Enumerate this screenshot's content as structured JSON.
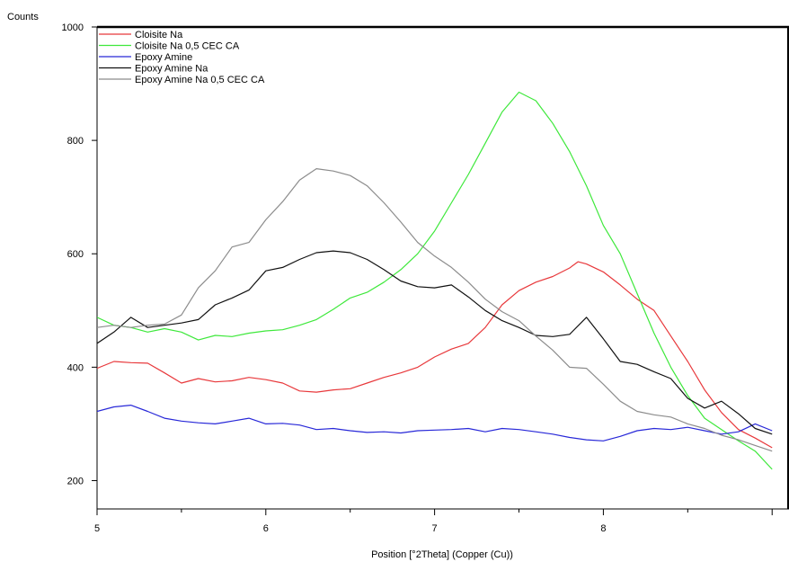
{
  "chart_data": {
    "type": "line",
    "xlabel": "Position [°2Theta] (Copper (Cu))",
    "ylabel": "Counts",
    "xlim": [
      5,
      9.1
    ],
    "ylim": [
      150,
      1000
    ],
    "x_ticks": [
      5,
      6,
      7,
      8
    ],
    "y_ticks": [
      200,
      400,
      600,
      800,
      1000
    ],
    "grid": false,
    "legend_position": "top-left",
    "series": [
      {
        "name": "Cloisite Na",
        "color": "#e8383b",
        "points": [
          [
            5.0,
            398
          ],
          [
            5.1,
            410
          ],
          [
            5.2,
            408
          ],
          [
            5.3,
            407
          ],
          [
            5.4,
            390
          ],
          [
            5.5,
            372
          ],
          [
            5.6,
            380
          ],
          [
            5.7,
            374
          ],
          [
            5.8,
            376
          ],
          [
            5.9,
            382
          ],
          [
            6.0,
            378
          ],
          [
            6.1,
            372
          ],
          [
            6.2,
            358
          ],
          [
            6.3,
            356
          ],
          [
            6.4,
            360
          ],
          [
            6.5,
            362
          ],
          [
            6.6,
            372
          ],
          [
            6.7,
            382
          ],
          [
            6.8,
            390
          ],
          [
            6.9,
            400
          ],
          [
            7.0,
            418
          ],
          [
            7.1,
            432
          ],
          [
            7.2,
            442
          ],
          [
            7.3,
            470
          ],
          [
            7.4,
            510
          ],
          [
            7.5,
            535
          ],
          [
            7.6,
            550
          ],
          [
            7.7,
            560
          ],
          [
            7.8,
            575
          ],
          [
            7.85,
            586
          ],
          [
            7.9,
            582
          ],
          [
            8.0,
            568
          ],
          [
            8.1,
            545
          ],
          [
            8.2,
            520
          ],
          [
            8.3,
            500
          ],
          [
            8.4,
            455
          ],
          [
            8.5,
            410
          ],
          [
            8.6,
            360
          ],
          [
            8.7,
            320
          ],
          [
            8.8,
            290
          ],
          [
            8.9,
            275
          ],
          [
            9.0,
            258
          ]
        ]
      },
      {
        "name": "Cloisite Na 0,5 CEC CA",
        "color": "#3ee83b",
        "points": [
          [
            5.0,
            488
          ],
          [
            5.1,
            474
          ],
          [
            5.2,
            470
          ],
          [
            5.3,
            462
          ],
          [
            5.4,
            468
          ],
          [
            5.5,
            462
          ],
          [
            5.6,
            448
          ],
          [
            5.7,
            456
          ],
          [
            5.8,
            454
          ],
          [
            5.9,
            460
          ],
          [
            6.0,
            464
          ],
          [
            6.1,
            466
          ],
          [
            6.2,
            474
          ],
          [
            6.3,
            484
          ],
          [
            6.4,
            502
          ],
          [
            6.5,
            522
          ],
          [
            6.6,
            532
          ],
          [
            6.7,
            550
          ],
          [
            6.8,
            572
          ],
          [
            6.9,
            600
          ],
          [
            7.0,
            640
          ],
          [
            7.1,
            690
          ],
          [
            7.2,
            740
          ],
          [
            7.3,
            795
          ],
          [
            7.4,
            850
          ],
          [
            7.5,
            885
          ],
          [
            7.6,
            870
          ],
          [
            7.7,
            830
          ],
          [
            7.8,
            780
          ],
          [
            7.9,
            720
          ],
          [
            8.0,
            650
          ],
          [
            8.1,
            600
          ],
          [
            8.2,
            530
          ],
          [
            8.3,
            460
          ],
          [
            8.4,
            400
          ],
          [
            8.5,
            350
          ],
          [
            8.6,
            310
          ],
          [
            8.7,
            290
          ],
          [
            8.8,
            270
          ],
          [
            8.9,
            252
          ],
          [
            9.0,
            220
          ]
        ]
      },
      {
        "name": "Epoxy Amine",
        "color": "#2828d8",
        "points": [
          [
            5.0,
            322
          ],
          [
            5.1,
            330
          ],
          [
            5.2,
            333
          ],
          [
            5.3,
            322
          ],
          [
            5.4,
            310
          ],
          [
            5.5,
            305
          ],
          [
            5.6,
            302
          ],
          [
            5.7,
            300
          ],
          [
            5.8,
            305
          ],
          [
            5.9,
            310
          ],
          [
            6.0,
            300
          ],
          [
            6.1,
            301
          ],
          [
            6.2,
            298
          ],
          [
            6.3,
            290
          ],
          [
            6.4,
            292
          ],
          [
            6.5,
            288
          ],
          [
            6.6,
            285
          ],
          [
            6.7,
            286
          ],
          [
            6.8,
            284
          ],
          [
            6.9,
            288
          ],
          [
            7.0,
            289
          ],
          [
            7.1,
            290
          ],
          [
            7.2,
            292
          ],
          [
            7.3,
            286
          ],
          [
            7.4,
            292
          ],
          [
            7.5,
            290
          ],
          [
            7.6,
            286
          ],
          [
            7.7,
            282
          ],
          [
            7.8,
            276
          ],
          [
            7.9,
            272
          ],
          [
            8.0,
            270
          ],
          [
            8.1,
            278
          ],
          [
            8.2,
            288
          ],
          [
            8.3,
            292
          ],
          [
            8.4,
            290
          ],
          [
            8.5,
            294
          ],
          [
            8.6,
            288
          ],
          [
            8.7,
            282
          ],
          [
            8.8,
            286
          ],
          [
            8.9,
            300
          ],
          [
            9.0,
            288
          ]
        ]
      },
      {
        "name": "Epoxy Amine Na",
        "color": "#111111",
        "points": [
          [
            5.0,
            442
          ],
          [
            5.1,
            462
          ],
          [
            5.2,
            488
          ],
          [
            5.3,
            470
          ],
          [
            5.4,
            474
          ],
          [
            5.5,
            478
          ],
          [
            5.6,
            484
          ],
          [
            5.7,
            510
          ],
          [
            5.8,
            522
          ],
          [
            5.9,
            536
          ],
          [
            6.0,
            570
          ],
          [
            6.1,
            576
          ],
          [
            6.2,
            590
          ],
          [
            6.3,
            602
          ],
          [
            6.4,
            605
          ],
          [
            6.5,
            602
          ],
          [
            6.6,
            590
          ],
          [
            6.7,
            572
          ],
          [
            6.8,
            552
          ],
          [
            6.9,
            542
          ],
          [
            7.0,
            540
          ],
          [
            7.1,
            545
          ],
          [
            7.2,
            524
          ],
          [
            7.3,
            500
          ],
          [
            7.4,
            482
          ],
          [
            7.5,
            470
          ],
          [
            7.6,
            456
          ],
          [
            7.7,
            454
          ],
          [
            7.8,
            458
          ],
          [
            7.9,
            488
          ],
          [
            8.0,
            450
          ],
          [
            8.1,
            410
          ],
          [
            8.2,
            405
          ],
          [
            8.3,
            392
          ],
          [
            8.4,
            380
          ],
          [
            8.5,
            345
          ],
          [
            8.6,
            328
          ],
          [
            8.7,
            340
          ],
          [
            8.8,
            318
          ],
          [
            8.9,
            292
          ],
          [
            9.0,
            282
          ]
        ]
      },
      {
        "name": "Epoxy Amine Na 0,5 CEC CA",
        "color": "#8c8c8c",
        "points": [
          [
            5.0,
            470
          ],
          [
            5.1,
            474
          ],
          [
            5.2,
            470
          ],
          [
            5.3,
            474
          ],
          [
            5.4,
            476
          ],
          [
            5.5,
            492
          ],
          [
            5.6,
            540
          ],
          [
            5.7,
            570
          ],
          [
            5.8,
            612
          ],
          [
            5.9,
            620
          ],
          [
            6.0,
            660
          ],
          [
            6.1,
            692
          ],
          [
            6.2,
            730
          ],
          [
            6.3,
            750
          ],
          [
            6.4,
            746
          ],
          [
            6.5,
            738
          ],
          [
            6.6,
            720
          ],
          [
            6.7,
            690
          ],
          [
            6.8,
            656
          ],
          [
            6.9,
            620
          ],
          [
            7.0,
            596
          ],
          [
            7.1,
            576
          ],
          [
            7.2,
            550
          ],
          [
            7.3,
            520
          ],
          [
            7.4,
            498
          ],
          [
            7.5,
            482
          ],
          [
            7.6,
            455
          ],
          [
            7.7,
            430
          ],
          [
            7.8,
            400
          ],
          [
            7.9,
            398
          ],
          [
            8.0,
            370
          ],
          [
            8.1,
            340
          ],
          [
            8.2,
            322
          ],
          [
            8.3,
            316
          ],
          [
            8.4,
            312
          ],
          [
            8.5,
            300
          ],
          [
            8.6,
            292
          ],
          [
            8.7,
            280
          ],
          [
            8.8,
            272
          ],
          [
            8.9,
            262
          ],
          [
            9.0,
            252
          ]
        ]
      }
    ]
  }
}
